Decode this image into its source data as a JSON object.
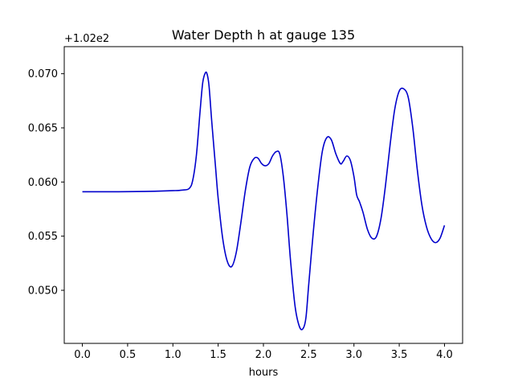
{
  "chart_data": {
    "type": "line",
    "title": "Water Depth h at gauge 135",
    "xlabel": "hours",
    "ylabel": "",
    "offset_text": "+1.02e2",
    "xlim": [
      -0.2,
      4.2
    ],
    "ylim": [
      0.0451,
      0.0725
    ],
    "x_ticks": [
      0.0,
      0.5,
      1.0,
      1.5,
      2.0,
      2.5,
      3.0,
      3.5,
      4.0
    ],
    "x_tick_labels": [
      "0.0",
      "0.5",
      "1.0",
      "1.5",
      "2.0",
      "2.5",
      "3.0",
      "3.5",
      "4.0"
    ],
    "y_ticks": [
      0.05,
      0.055,
      0.06,
      0.065,
      0.07
    ],
    "y_tick_labels": [
      "0.050",
      "0.055",
      "0.060",
      "0.065",
      "0.070"
    ],
    "grid": false,
    "legend": "none",
    "series": [
      {
        "color": "#0000cc",
        "x": [
          0.0,
          0.2,
          0.4,
          0.6,
          0.8,
          1.0,
          1.1,
          1.18,
          1.22,
          1.26,
          1.3,
          1.33,
          1.36,
          1.38,
          1.4,
          1.43,
          1.47,
          1.5,
          1.55,
          1.6,
          1.65,
          1.7,
          1.75,
          1.8,
          1.85,
          1.9,
          1.94,
          1.98,
          2.02,
          2.06,
          2.1,
          2.14,
          2.18,
          2.22,
          2.26,
          2.3,
          2.35,
          2.4,
          2.44,
          2.47,
          2.5,
          2.55,
          2.6,
          2.65,
          2.7,
          2.75,
          2.8,
          2.85,
          2.88,
          2.92,
          2.96,
          3.0,
          3.03,
          3.06,
          3.1,
          3.15,
          3.2,
          3.25,
          3.3,
          3.35,
          3.4,
          3.45,
          3.5,
          3.55,
          3.6,
          3.65,
          3.7,
          3.75,
          3.8,
          3.85,
          3.9,
          3.95,
          4.0
        ],
        "y": [
          0.0591,
          0.0591,
          0.0591,
          0.05912,
          0.05915,
          0.0592,
          0.05925,
          0.0594,
          0.0602,
          0.0625,
          0.0665,
          0.0692,
          0.0701,
          0.0699,
          0.0688,
          0.0655,
          0.0615,
          0.0585,
          0.0548,
          0.0527,
          0.0522,
          0.0535,
          0.0562,
          0.0592,
          0.0614,
          0.0622,
          0.0622,
          0.0617,
          0.0615,
          0.0617,
          0.0624,
          0.0628,
          0.0626,
          0.0605,
          0.057,
          0.0527,
          0.0485,
          0.0466,
          0.0465,
          0.0475,
          0.0505,
          0.0553,
          0.0595,
          0.0628,
          0.0641,
          0.0639,
          0.0626,
          0.0617,
          0.0619,
          0.0624,
          0.062,
          0.0605,
          0.0588,
          0.0582,
          0.0572,
          0.0556,
          0.0548,
          0.055,
          0.0567,
          0.0598,
          0.0635,
          0.0667,
          0.0684,
          0.0686,
          0.0678,
          0.065,
          0.0611,
          0.0579,
          0.0559,
          0.0548,
          0.0544,
          0.0548,
          0.056
        ]
      }
    ]
  }
}
